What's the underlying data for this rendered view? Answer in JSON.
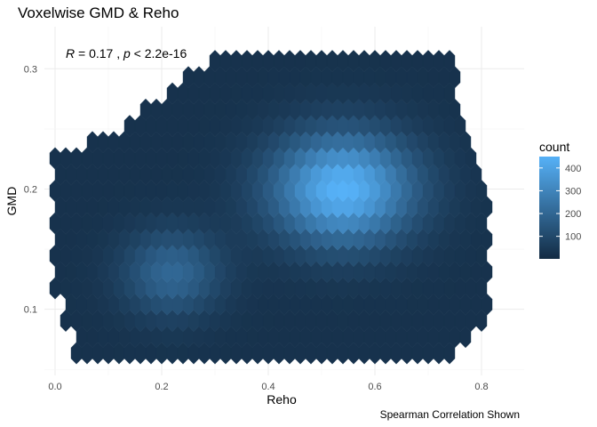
{
  "chart_data": {
    "type": "hexbin",
    "title": "Voxelwise GMD & Reho",
    "xlabel": "Reho",
    "ylabel": "GMD",
    "caption": "Spearman Correlation Shown",
    "annotation": {
      "r_symbol": "R",
      "r_text": " = 0.17 , ",
      "p_symbol": "p",
      "p_text": " < 2.2e-16"
    },
    "xlim": [
      -0.02,
      0.88
    ],
    "ylim": [
      0.045,
      0.335
    ],
    "x_ticks": [
      0.0,
      0.2,
      0.4,
      0.6,
      0.8
    ],
    "x_tick_labels": [
      "0.0",
      "0.2",
      "0.4",
      "0.6",
      "0.8"
    ],
    "y_ticks": [
      0.1,
      0.2,
      0.3
    ],
    "y_tick_labels": [
      "0.1",
      "0.2",
      "0.3"
    ],
    "grid": true,
    "legend": {
      "title": "count",
      "position": "right",
      "ticks": [
        100,
        200,
        300,
        400
      ],
      "tick_labels": [
        "100",
        "200",
        "300",
        "400"
      ],
      "range": [
        1,
        450
      ],
      "color_low": "#132b43",
      "color_high": "#56b1f7"
    },
    "density_model": {
      "x_range": [
        0.0,
        0.82
      ],
      "y_range": [
        0.055,
        0.325
      ],
      "peak_center": [
        0.54,
        0.2
      ],
      "peak_count": 430,
      "secondary_center": [
        0.22,
        0.13
      ],
      "secondary_count": 180,
      "base_count": 25
    }
  }
}
